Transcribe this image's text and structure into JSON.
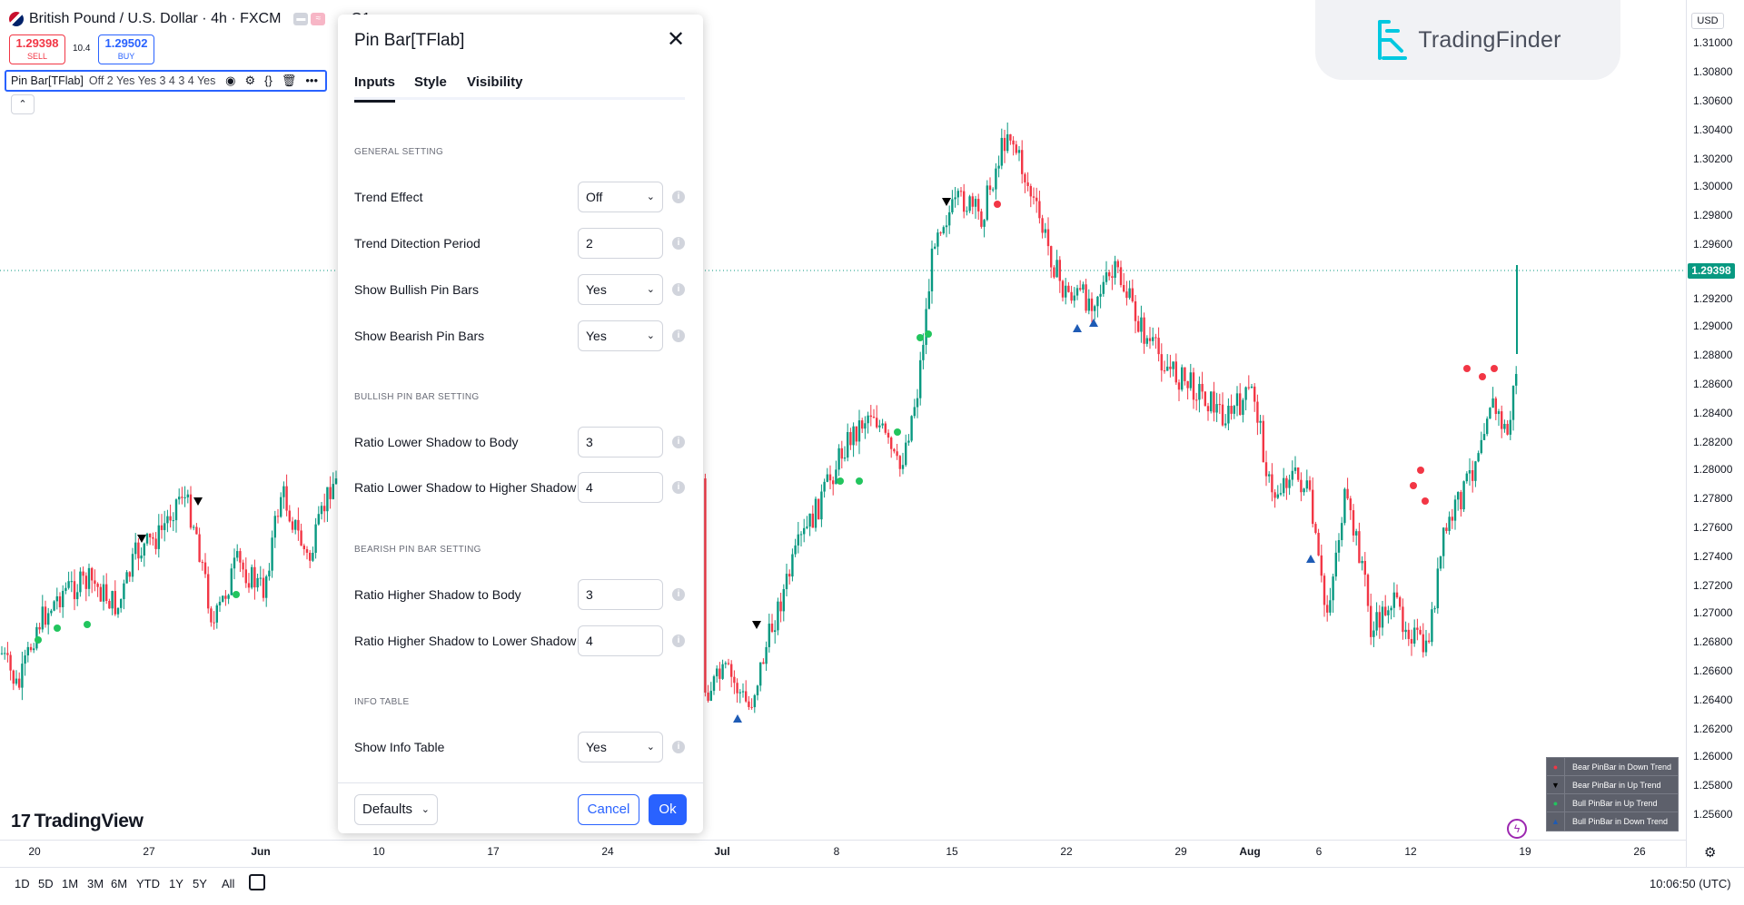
{
  "symbol": {
    "title": "British Pound / U.S. Dollar · 4h · FXCM",
    "ohlc_fragment": "O1.",
    "sell_price": "1.29398",
    "sell_label": "SELL",
    "buy_price": "1.29502",
    "buy_label": "BUY",
    "spread": "10.4"
  },
  "indicator_legend": {
    "name": "Pin Bar[TFlab]",
    "args": "Off 2 Yes Yes 3 4 3 4 Yes"
  },
  "dialog": {
    "title": "Pin Bar[TFlab]",
    "tabs": [
      "Inputs",
      "Style",
      "Visibility"
    ],
    "sections": {
      "general": "GENERAL SETTING",
      "bullish": "BULLISH PIN BAR SETTING",
      "bearish": "BEARISH PIN BAR SETTING",
      "info": "INFO TABLE"
    },
    "rows": {
      "trend_effect": {
        "label": "Trend Effect",
        "value": "Off"
      },
      "trend_period": {
        "label": "Trend Ditection Period",
        "value": "2"
      },
      "show_bullish": {
        "label": "Show Bullish Pin Bars",
        "value": "Yes"
      },
      "show_bearish": {
        "label": "Show Bearish Pin Bars",
        "value": "Yes"
      },
      "bull_ratio_body": {
        "label": "Ratio Lower Shadow to Body",
        "value": "3"
      },
      "bull_ratio_shadow": {
        "label": "Ratio Lower Shadow to Higher Shadow",
        "value": "4"
      },
      "bear_ratio_body": {
        "label": "Ratio Higher Shadow to Body",
        "value": "3"
      },
      "bear_ratio_shadow": {
        "label": "Ratio Higher Shadow to Lower Shadow",
        "value": "4"
      },
      "show_info": {
        "label": "Show Info Table",
        "value": "Yes"
      }
    },
    "footer": {
      "defaults": "Defaults",
      "cancel": "Cancel",
      "ok": "Ok"
    }
  },
  "price_axis": {
    "currency": "USD",
    "ticks": [
      "1.31000",
      "1.30800",
      "1.30600",
      "1.30400",
      "1.30200",
      "1.30000",
      "1.29800",
      "1.29600",
      "1.29200",
      "1.29000",
      "1.28800",
      "1.28600",
      "1.28400",
      "1.28200",
      "1.28000",
      "1.27800",
      "1.27600",
      "1.27400",
      "1.27200",
      "1.27000",
      "1.26800",
      "1.26600",
      "1.26400",
      "1.26200",
      "1.26000",
      "1.25800",
      "1.25600"
    ],
    "last_price": "1.29398"
  },
  "time_axis": {
    "ticks": [
      "20",
      "27",
      "Jun",
      "10",
      "17",
      "24",
      "Jul",
      "8",
      "15",
      "22",
      "29",
      "Aug",
      "6",
      "12",
      "19",
      "26"
    ],
    "bold": [
      "Jun",
      "Jul",
      "Aug"
    ]
  },
  "timeframes": [
    "1D",
    "5D",
    "1M",
    "3M",
    "6M",
    "YTD",
    "1Y",
    "5Y",
    "All"
  ],
  "clock": "10:06:50 (UTC)",
  "branding": {
    "tradingview": "TradingView",
    "tradingfinder": "TradingFinder"
  },
  "legend_table": [
    {
      "symbol": "circle",
      "color": "#f23645",
      "label": "Bear PinBar in Down Trend"
    },
    {
      "symbol": "triangle-down",
      "color": "#000000",
      "label": "Bear PinBar in Up Trend"
    },
    {
      "symbol": "circle",
      "color": "#22c55e",
      "label": "Bull PinBar in Up Trend"
    },
    {
      "symbol": "triangle-up",
      "color": "#1e5bb5",
      "label": "Bull PinBar in Down Trend"
    }
  ],
  "colors": {
    "bull_candle": "#089981",
    "bear_candle": "#f23645",
    "accent": "#2962ff",
    "bear_marker": "#f23645",
    "bull_marker": "#22c55e",
    "bull_down_marker": "#1e5bb5"
  }
}
